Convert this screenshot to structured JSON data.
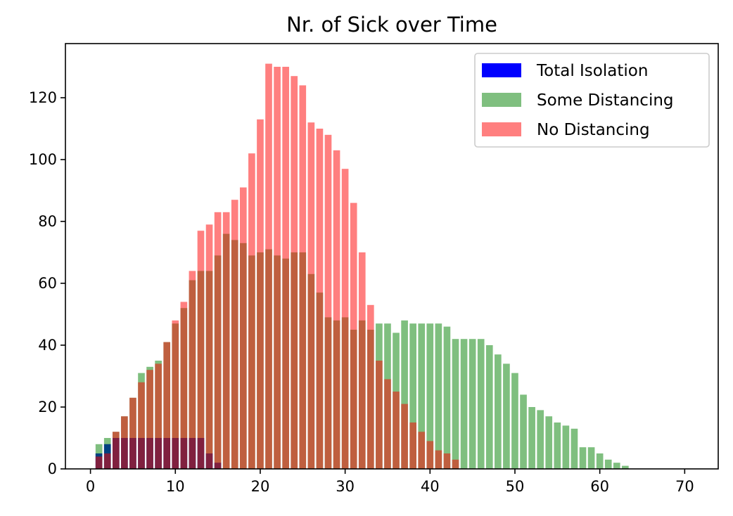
{
  "chart_data": {
    "type": "bar",
    "title": "Nr. of Sick over Time",
    "xlabel": "",
    "ylabel": "",
    "xlim": [
      -2.95,
      73.95
    ],
    "ylim": [
      0,
      137.5
    ],
    "xticks": [
      0,
      10,
      20,
      30,
      40,
      50,
      60,
      70
    ],
    "yticks": [
      0,
      20,
      40,
      60,
      80,
      100,
      120
    ],
    "grid": false,
    "legend_position": "top-right",
    "series": [
      {
        "name": "Total Isolation",
        "color": "#0000ff",
        "alpha": 1.0,
        "values": [
          0,
          5,
          8,
          10,
          10,
          10,
          10,
          10,
          10,
          10,
          10,
          10,
          10,
          10,
          5,
          2,
          0,
          0,
          0,
          0,
          0,
          0,
          0,
          0,
          0,
          0,
          0,
          0,
          0,
          0,
          0,
          0,
          0,
          0,
          0,
          0,
          0,
          0,
          0,
          0,
          0,
          0,
          0,
          0,
          0,
          0,
          0,
          0,
          0,
          0,
          0,
          0,
          0,
          0,
          0,
          0,
          0,
          0,
          0,
          0,
          0,
          0,
          0,
          0,
          0,
          0,
          0,
          0,
          0,
          0,
          0,
          0
        ]
      },
      {
        "name": "Some Distancing",
        "color": "#008000",
        "alpha": 0.5,
        "values": [
          0,
          8,
          10,
          12,
          17,
          23,
          31,
          33,
          35,
          41,
          47,
          52,
          61,
          64,
          64,
          69,
          76,
          74,
          73,
          69,
          70,
          71,
          69,
          68,
          70,
          70,
          63,
          57,
          49,
          48,
          49,
          45,
          48,
          45,
          35,
          29,
          25,
          21,
          15,
          12,
          9,
          6,
          5,
          3,
          0,
          0,
          0,
          0,
          0,
          0,
          0,
          0,
          0,
          0,
          0,
          0,
          0,
          0,
          0,
          0,
          0,
          0,
          0,
          0,
          0,
          0,
          0,
          0,
          0,
          0,
          0,
          0
        ]
      },
      {
        "name": "No Distancing",
        "color": "#ff0000",
        "alpha": 0.5,
        "values": [
          0,
          4,
          5,
          12,
          17,
          23,
          28,
          32,
          34,
          41,
          48,
          54,
          64,
          77,
          79,
          83,
          83,
          87,
          91,
          102,
          113,
          131,
          130,
          130,
          127,
          124,
          112,
          110,
          108,
          103,
          97,
          86,
          70,
          53,
          35,
          29,
          25,
          21,
          15,
          12,
          9,
          6,
          5,
          3,
          0,
          0,
          0,
          0,
          0,
          0,
          0,
          0,
          0,
          0,
          0,
          0,
          0,
          0,
          0,
          0,
          0,
          0,
          0,
          0,
          0,
          0,
          0,
          0,
          0,
          0,
          0,
          0
        ]
      }
    ],
    "tail_green": [
      0,
      0,
      0,
      0,
      0,
      0,
      0,
      0,
      0,
      0,
      0,
      0,
      0,
      0,
      0,
      0,
      0,
      0,
      0,
      0,
      0,
      0,
      0,
      0,
      0,
      0,
      0,
      0,
      0,
      0,
      0,
      0,
      0,
      45,
      47,
      47,
      44,
      48,
      47,
      47,
      47,
      47,
      46,
      42,
      42,
      42,
      42,
      40,
      37,
      34,
      31,
      24,
      20,
      19,
      17,
      15,
      14,
      13,
      7,
      7,
      5,
      3,
      2,
      1,
      0,
      0,
      0,
      0,
      0,
      0,
      0,
      0
    ]
  }
}
